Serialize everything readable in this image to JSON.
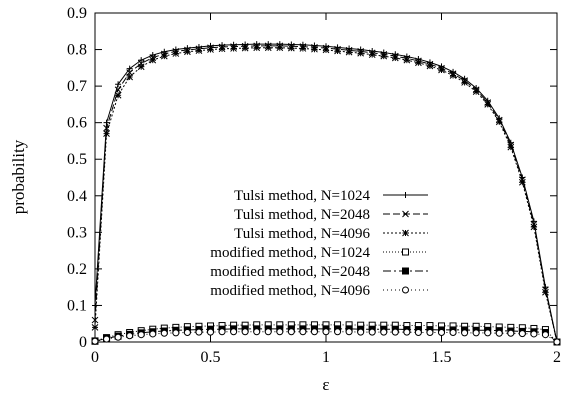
{
  "chart_data": {
    "type": "line",
    "title": "",
    "xlabel": "ε",
    "ylabel": "probability",
    "xlim": [
      0,
      2
    ],
    "ylim": [
      0,
      0.9
    ],
    "xticks": [
      "0",
      "0.5",
      "1",
      "1.5",
      "2"
    ],
    "yticks": [
      "0",
      "0.1",
      "0.2",
      "0.3",
      "0.4",
      "0.5",
      "0.6",
      "0.7",
      "0.8",
      "0.9"
    ],
    "grid": false,
    "legend_position": "center",
    "x": [
      0,
      0.05,
      0.1,
      0.15,
      0.2,
      0.25,
      0.3,
      0.35,
      0.4,
      0.45,
      0.5,
      0.55,
      0.6,
      0.65,
      0.7,
      0.75,
      0.8,
      0.85,
      0.9,
      0.95,
      1.0,
      1.05,
      1.1,
      1.15,
      1.2,
      1.25,
      1.3,
      1.35,
      1.4,
      1.45,
      1.5,
      1.55,
      1.6,
      1.65,
      1.7,
      1.75,
      1.8,
      1.85,
      1.9,
      1.95,
      2.0
    ],
    "series": [
      {
        "name": "Tulsi method, N=1024",
        "marker": "plus",
        "dash": "",
        "values": [
          0.1,
          0.6,
          0.705,
          0.748,
          0.771,
          0.785,
          0.794,
          0.8,
          0.804,
          0.807,
          0.81,
          0.812,
          0.813,
          0.814,
          0.815,
          0.815,
          0.815,
          0.814,
          0.813,
          0.811,
          0.809,
          0.806,
          0.803,
          0.8,
          0.796,
          0.792,
          0.787,
          0.781,
          0.774,
          0.765,
          0.754,
          0.739,
          0.72,
          0.695,
          0.66,
          0.612,
          0.545,
          0.45,
          0.33,
          0.15,
          0.0
        ]
      },
      {
        "name": "Tulsi method, N=2048",
        "marker": "cross",
        "dash": "7,3",
        "values": [
          0.06,
          0.585,
          0.69,
          0.737,
          0.762,
          0.778,
          0.788,
          0.795,
          0.799,
          0.802,
          0.805,
          0.807,
          0.808,
          0.809,
          0.81,
          0.81,
          0.81,
          0.809,
          0.808,
          0.806,
          0.804,
          0.801,
          0.798,
          0.795,
          0.791,
          0.787,
          0.782,
          0.776,
          0.769,
          0.76,
          0.749,
          0.734,
          0.715,
          0.69,
          0.655,
          0.607,
          0.539,
          0.444,
          0.322,
          0.143,
          0.0
        ]
      },
      {
        "name": "Tulsi method, N=4096",
        "marker": "asterisk",
        "dash": "2,2",
        "values": [
          0.04,
          0.57,
          0.675,
          0.725,
          0.753,
          0.771,
          0.782,
          0.789,
          0.794,
          0.797,
          0.8,
          0.802,
          0.803,
          0.804,
          0.805,
          0.805,
          0.805,
          0.804,
          0.803,
          0.801,
          0.799,
          0.796,
          0.793,
          0.79,
          0.786,
          0.782,
          0.777,
          0.771,
          0.764,
          0.755,
          0.744,
          0.729,
          0.71,
          0.685,
          0.65,
          0.602,
          0.533,
          0.437,
          0.315,
          0.136,
          0.0
        ]
      },
      {
        "name": "modified method, N=1024",
        "marker": "square-open",
        "dash": "1,2",
        "values": [
          0.003,
          0.012,
          0.02,
          0.026,
          0.031,
          0.035,
          0.038,
          0.04,
          0.042,
          0.043,
          0.044,
          0.045,
          0.046,
          0.046,
          0.047,
          0.047,
          0.047,
          0.047,
          0.047,
          0.047,
          0.047,
          0.047,
          0.047,
          0.046,
          0.046,
          0.046,
          0.046,
          0.045,
          0.045,
          0.045,
          0.044,
          0.044,
          0.043,
          0.043,
          0.042,
          0.041,
          0.04,
          0.039,
          0.037,
          0.034,
          0.0
        ]
      },
      {
        "name": "modified method, N=2048",
        "marker": "square-filled",
        "dash": "8,3,2,3",
        "values": [
          0.002,
          0.01,
          0.016,
          0.021,
          0.025,
          0.028,
          0.03,
          0.032,
          0.033,
          0.034,
          0.035,
          0.035,
          0.036,
          0.036,
          0.036,
          0.036,
          0.036,
          0.036,
          0.036,
          0.036,
          0.036,
          0.036,
          0.036,
          0.035,
          0.035,
          0.035,
          0.035,
          0.034,
          0.034,
          0.034,
          0.033,
          0.033,
          0.033,
          0.032,
          0.032,
          0.031,
          0.03,
          0.029,
          0.028,
          0.026,
          0.0
        ]
      },
      {
        "name": "modified method, N=4096",
        "marker": "circle-open",
        "dash": "1,3",
        "values": [
          0.002,
          0.008,
          0.013,
          0.017,
          0.02,
          0.022,
          0.024,
          0.025,
          0.026,
          0.027,
          0.027,
          0.028,
          0.028,
          0.028,
          0.028,
          0.028,
          0.028,
          0.028,
          0.028,
          0.028,
          0.028,
          0.028,
          0.028,
          0.027,
          0.027,
          0.027,
          0.027,
          0.027,
          0.026,
          0.026,
          0.026,
          0.026,
          0.025,
          0.025,
          0.025,
          0.024,
          0.024,
          0.023,
          0.022,
          0.02,
          0.0
        ]
      }
    ]
  }
}
